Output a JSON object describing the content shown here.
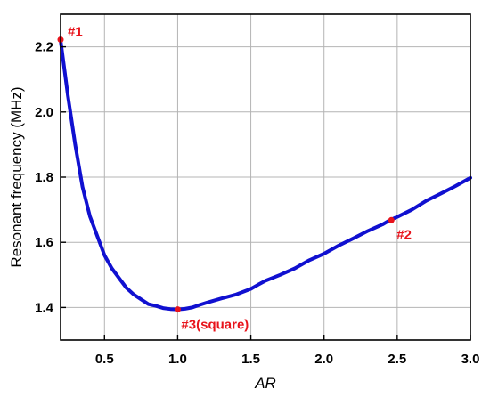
{
  "chart_data": {
    "type": "line",
    "title": "",
    "xlabel": "AR",
    "ylabel": "Resonant frequency (MHz)",
    "xlim": [
      0.2,
      3.0
    ],
    "ylim": [
      1.3,
      2.3
    ],
    "x_ticks": [
      0.5,
      1.0,
      1.5,
      2.0,
      2.5,
      3.0
    ],
    "x_tick_labels": [
      "0.5",
      "1.0",
      "1.5",
      "2.0",
      "2.5",
      "3.0"
    ],
    "y_ticks": [
      1.4,
      1.6,
      1.8,
      2.0,
      2.2
    ],
    "y_tick_labels": [
      "1.4",
      "1.6",
      "1.8",
      "2.0",
      "2.2"
    ],
    "grid": true,
    "series": [
      {
        "color": "#1010d0",
        "x": [
          0.2,
          0.25,
          0.3,
          0.35,
          0.4,
          0.45,
          0.5,
          0.55,
          0.6,
          0.65,
          0.7,
          0.75,
          0.8,
          0.85,
          0.9,
          0.95,
          1.0,
          1.05,
          1.1,
          1.15,
          1.2,
          1.3,
          1.4,
          1.5,
          1.55,
          1.6,
          1.7,
          1.8,
          1.9,
          2.0,
          2.1,
          2.2,
          2.3,
          2.4,
          2.45,
          2.5,
          2.6,
          2.7,
          2.8,
          2.9,
          3.0
        ],
        "y": [
          2.22,
          2.05,
          1.9,
          1.77,
          1.68,
          1.62,
          1.56,
          1.52,
          1.49,
          1.46,
          1.44,
          1.425,
          1.41,
          1.405,
          1.398,
          1.395,
          1.394,
          1.396,
          1.4,
          1.408,
          1.415,
          1.428,
          1.44,
          1.457,
          1.47,
          1.482,
          1.5,
          1.52,
          1.545,
          1.565,
          1.59,
          1.612,
          1.635,
          1.655,
          1.668,
          1.678,
          1.7,
          1.728,
          1.75,
          1.773,
          1.798
        ]
      }
    ],
    "annotations": [
      {
        "text": "#1",
        "x": 0.2,
        "y": 2.222
      },
      {
        "text": "#2",
        "x": 2.46,
        "y": 1.668
      },
      {
        "text": "#3(square)",
        "x": 1.0,
        "y": 1.394
      }
    ],
    "annotation_color": "#e8141c"
  }
}
